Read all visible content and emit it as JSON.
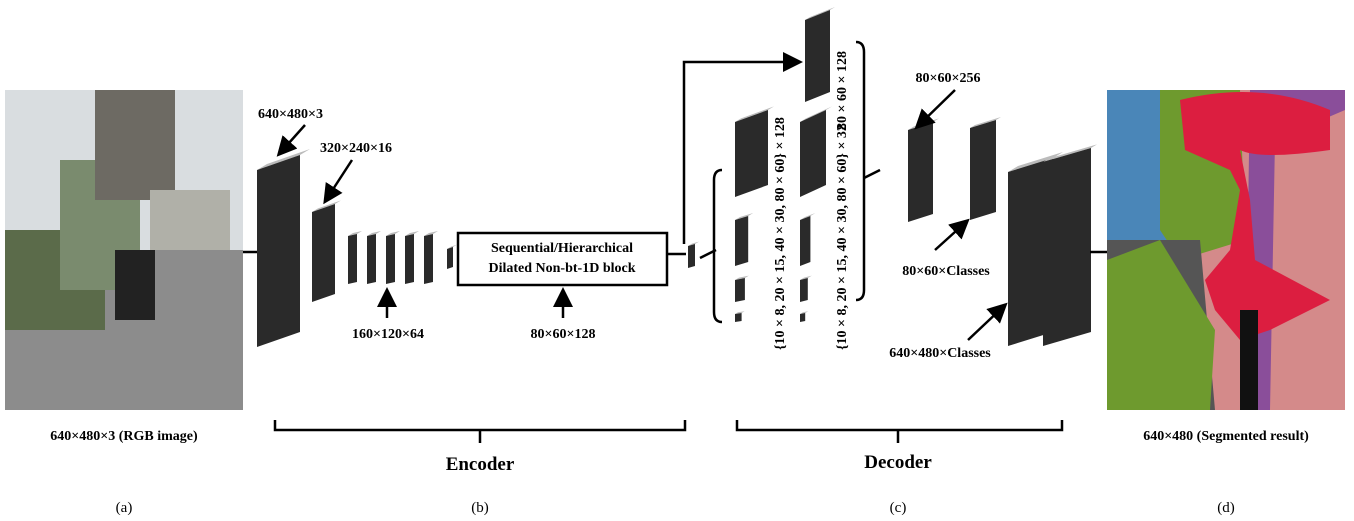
{
  "input": {
    "size_label": "640×480×3",
    "caption": "640×480×3 (RGB image)",
    "panel": "(a)"
  },
  "encoder": {
    "stage1": "320×240×16",
    "stage2": "160×120×64",
    "block_lines": [
      "Sequential/Hierarchical",
      "Dilated Non-bt-1D block"
    ],
    "block_size": "80×60×128",
    "name": "Encoder",
    "panel": "(b)"
  },
  "decoder": {
    "pyramid_128": "{10 × 8, 20 × 15, 40 × 30, 80 × 60} × 128",
    "pyramid_32": "{10 × 8, 20 × 15, 40 × 30, 80 × 60} × 32",
    "skip": "80 × 60 × 128",
    "concat": "80×60×256",
    "classes_small": "80×60×Classes",
    "classes_full": "640×480×Classes",
    "name": "Decoder",
    "panel": "(c)"
  },
  "output": {
    "caption": "640×480 (Segmented result)",
    "panel": "(d)"
  }
}
